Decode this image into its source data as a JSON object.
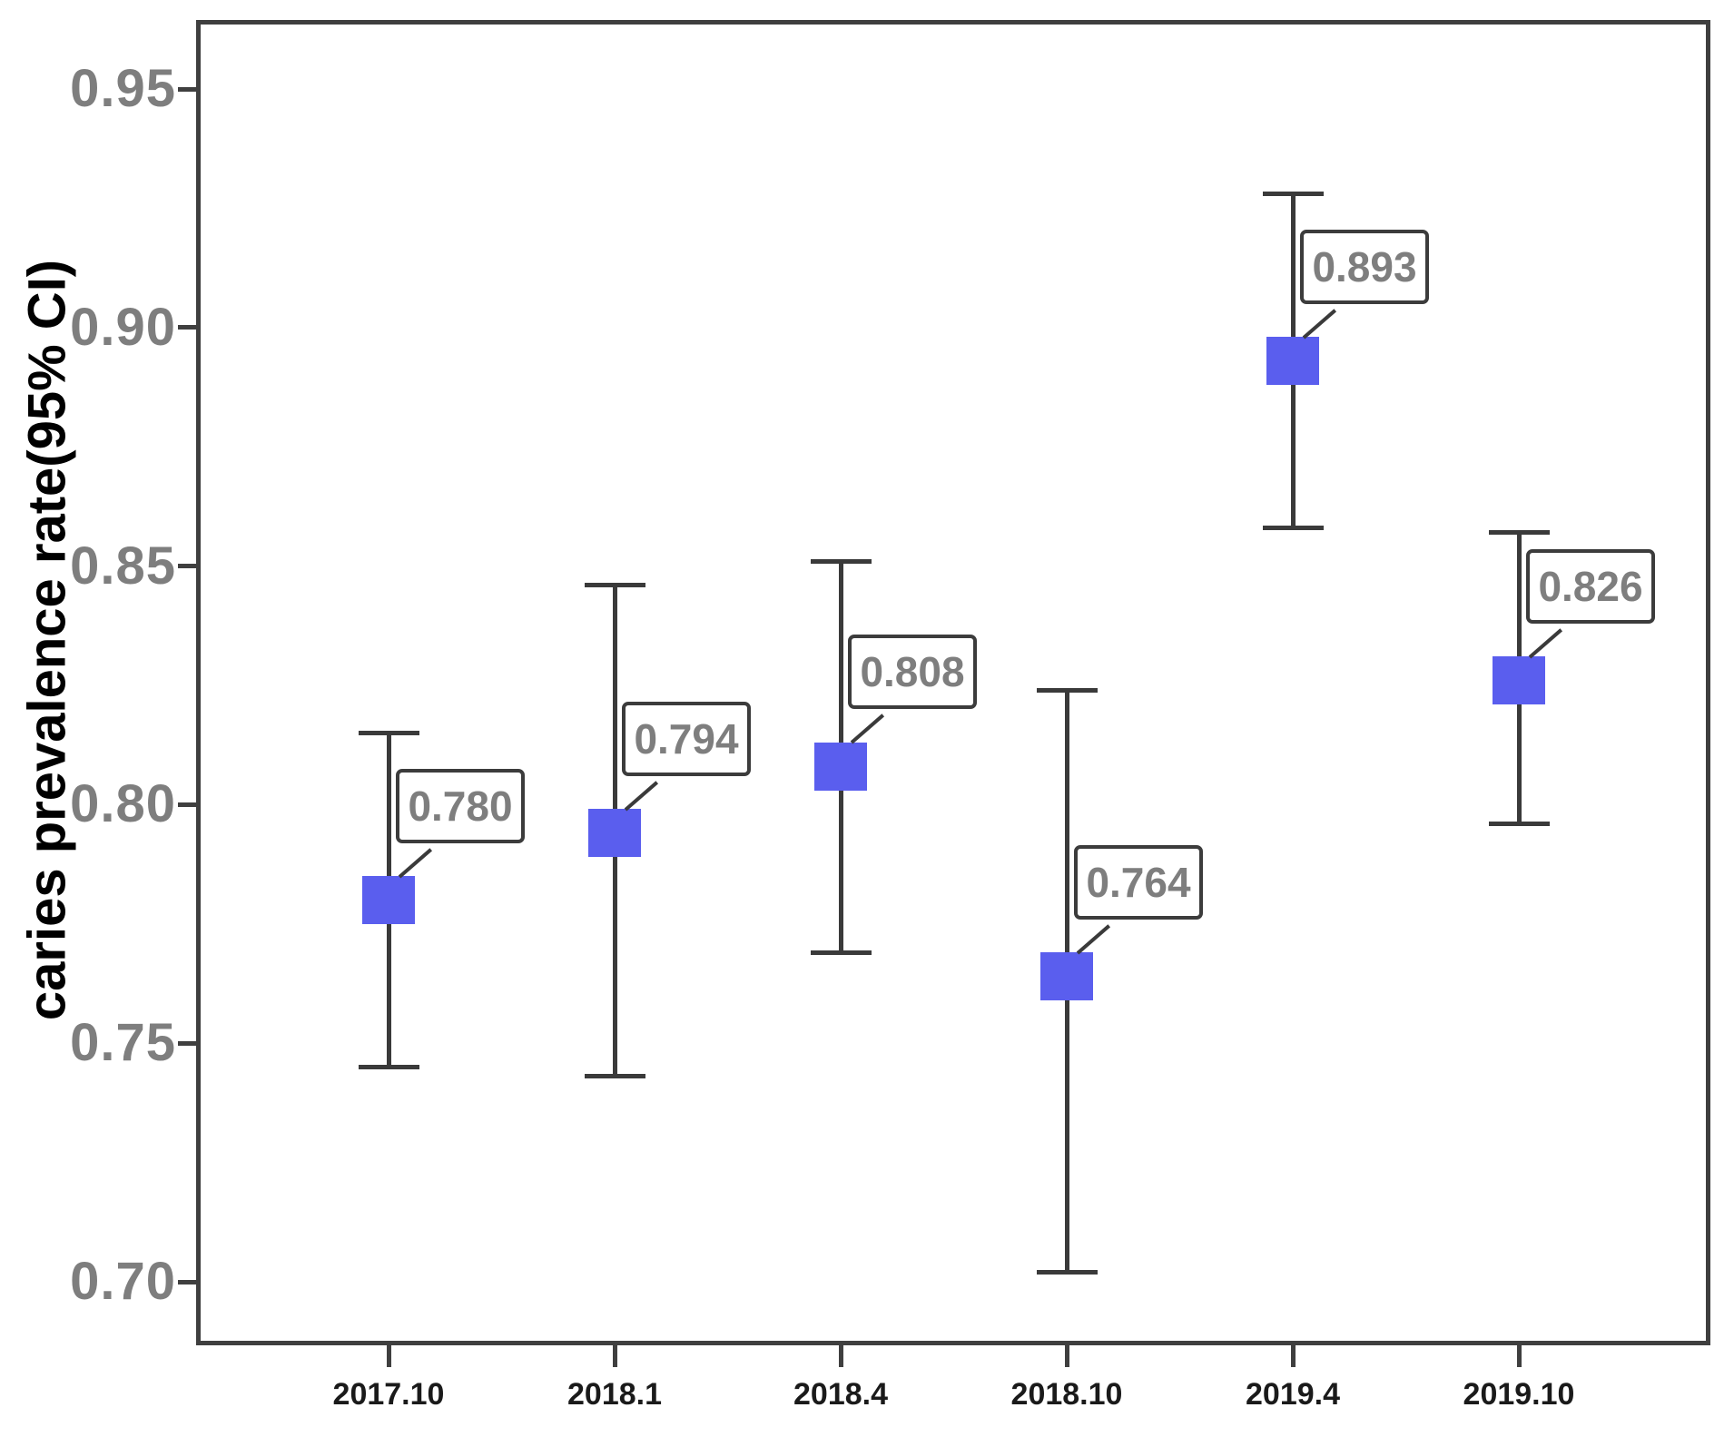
{
  "chart_data": {
    "type": "scatter",
    "subtype": "point-estimates-with-error-bars",
    "title": "",
    "xlabel": "",
    "ylabel": "caries prevalence rate(95% CI)",
    "categories": [
      "2017.10",
      "2018.1",
      "2018.4",
      "2018.10",
      "2019.4",
      "2019.10"
    ],
    "series": [
      {
        "name": "caries prevalence rate (95% CI)",
        "values": [
          0.78,
          0.794,
          0.808,
          0.764,
          0.893,
          0.826
        ],
        "ci_lower": [
          0.745,
          0.743,
          0.769,
          0.702,
          0.858,
          0.796
        ],
        "ci_upper": [
          0.815,
          0.846,
          0.851,
          0.824,
          0.928,
          0.857
        ]
      }
    ],
    "point_labels": [
      "0.780",
      "0.794",
      "0.808",
      "0.764",
      "0.893",
      "0.826"
    ],
    "ylim": [
      0.7,
      0.95
    ],
    "yticks": [
      0.95,
      0.9,
      0.85,
      0.8,
      0.75,
      0.7
    ],
    "ytick_labels": [
      "0.95",
      "0.90",
      "0.85",
      "0.80",
      "0.75",
      "0.70"
    ],
    "grid": "off",
    "legend": "none",
    "frame": "on",
    "marker": {
      "shape": "square",
      "color": "#5a5eee"
    },
    "colors": {
      "frame": "#3f3f3f",
      "error_bar": "#3a3a3a",
      "ytick_label": "#7e7e7e",
      "xtick_label": "#1a1a1a",
      "axis_title": "#000000",
      "annotation_text": "#7e7e7e",
      "annotation_border": "#3c3c3c",
      "background": "#ffffff"
    }
  }
}
